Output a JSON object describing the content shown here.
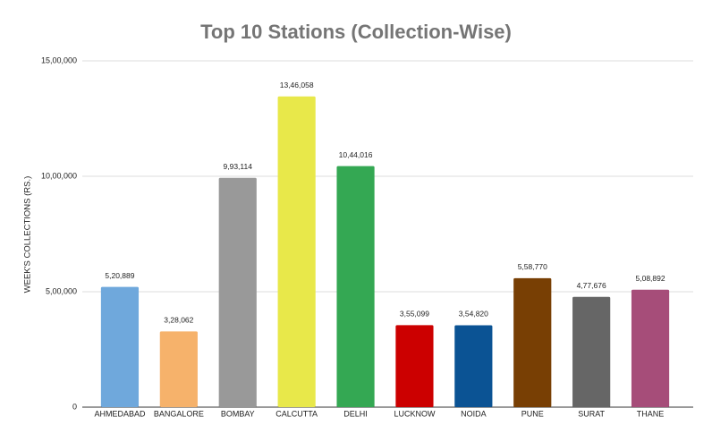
{
  "chart_data": {
    "type": "bar",
    "title": "Top 10 Stations (Collection-Wise)",
    "y_label": "WEEK'S COLLECTIONS (RS.)",
    "categories": [
      "AHMEDABAD",
      "BANGALORE",
      "BOMBAY",
      "CALCUTTA",
      "DELHI",
      "LUCKNOW",
      "NOIDA",
      "PUNE",
      "SURAT",
      "THANE"
    ],
    "values": [
      520889,
      328062,
      993114,
      1346058,
      1044016,
      355099,
      354820,
      558770,
      477676,
      508892
    ],
    "value_labels": [
      "5,20,889",
      "3,28,062",
      "9,93,114",
      "13,46,058",
      "10,44,016",
      "3,55,099",
      "3,54,820",
      "5,58,770",
      "4,77,676",
      "5,08,892"
    ],
    "colors": [
      "#6fa8dc",
      "#f6b26b",
      "#999999",
      "#e8e84a",
      "#34a853",
      "#cc0000",
      "#0b5394",
      "#783f04",
      "#666666",
      "#a64d79"
    ],
    "ylim": [
      0,
      1500000
    ],
    "yticks": [
      0,
      {
        "value": 500000,
        "label": "5,00,000"
      },
      {
        "value": 1000000,
        "label": "10,00,000"
      },
      {
        "value": 1500000,
        "label": "15,00,000"
      }
    ],
    "grid": true
  }
}
